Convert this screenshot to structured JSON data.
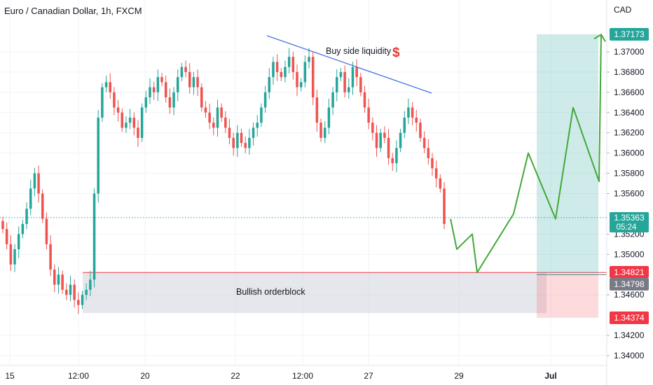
{
  "header": {
    "title": "Euro / Canadian Dollar, 1h, FXCM",
    "currency": "CAD"
  },
  "annotations": {
    "liquidity_label": "Buy side liquidity",
    "dollar_sign": "$",
    "orderblock_label": "Bullish orderblock"
  },
  "price_axis": {
    "ticks": [
      "1.37000",
      "1.36800",
      "1.36600",
      "1.36400",
      "1.36200",
      "1.36000",
      "1.35800",
      "1.35600",
      "1.35200",
      "1.35000",
      "1.34600",
      "1.34200",
      "1.34000"
    ],
    "tick_values": [
      1.37,
      1.368,
      1.366,
      1.364,
      1.362,
      1.36,
      1.358,
      1.356,
      1.352,
      1.35,
      1.346,
      1.342,
      1.34
    ]
  },
  "time_axis": {
    "labels": [
      "15",
      "12:00",
      "20",
      "22",
      "12:00",
      "27",
      "29",
      "Jul"
    ]
  },
  "price_tags": {
    "target": {
      "text": "1.37173",
      "color": "#26a69a"
    },
    "current": {
      "text": "1.35363",
      "countdown": "05:24",
      "color": "#26a69a"
    },
    "orderblock_top": {
      "text": "1.34821",
      "color": "#f23645"
    },
    "orderblock_mid": {
      "text": "1.34798",
      "color": "#787b86"
    },
    "stop": {
      "text": "1.34374",
      "color": "#f23645"
    }
  },
  "colors": {
    "up": "#26a69a",
    "down": "#ef5350",
    "projection": "#43a83a",
    "trendline": "#4169e1"
  },
  "chart_data": {
    "type": "candlestick",
    "series_close": [
      1.3525,
      1.351,
      1.349,
      1.3505,
      1.352,
      1.353,
      1.3545,
      1.3565,
      1.358,
      1.356,
      1.3535,
      1.351,
      1.3485,
      1.347,
      1.348,
      1.3465,
      1.346,
      1.347,
      1.3455,
      1.345,
      1.346,
      1.3465,
      1.3475,
      1.356,
      1.3635,
      1.3665,
      1.367,
      1.366,
      1.3645,
      1.364,
      1.3625,
      1.363,
      1.3635,
      1.3625,
      1.3615,
      1.3645,
      1.3655,
      1.3665,
      1.366,
      1.3675,
      1.367,
      1.3655,
      1.3645,
      1.366,
      1.3675,
      1.3685,
      1.368,
      1.3665,
      1.3675,
      1.3665,
      1.3645,
      1.364,
      1.363,
      1.3625,
      1.3645,
      1.3635,
      1.3625,
      1.3615,
      1.3605,
      1.362,
      1.361,
      1.3605,
      1.3615,
      1.3625,
      1.363,
      1.3645,
      1.366,
      1.3675,
      1.369,
      1.368,
      1.3675,
      1.3685,
      1.3695,
      1.368,
      1.3665,
      1.367,
      1.369,
      1.3695,
      1.3655,
      1.363,
      1.3615,
      1.3625,
      1.3645,
      1.366,
      1.3675,
      1.368,
      1.366,
      1.3665,
      1.3685,
      1.3675,
      1.366,
      1.3645,
      1.363,
      1.362,
      1.3605,
      1.362,
      1.3615,
      1.3595,
      1.359,
      1.3605,
      1.362,
      1.3635,
      1.3645,
      1.3635,
      1.363,
      1.3615,
      1.3605,
      1.3595,
      1.3585,
      1.3575,
      1.3565,
      1.353
    ],
    "projection_path": [
      1.3535,
      1.3505,
      1.352,
      1.3482,
      1.354,
      1.36,
      1.3535,
      1.3645,
      1.3572,
      1.3717
    ],
    "levels": {
      "target": 1.37173,
      "current": 1.35363,
      "orderblock_top": 1.34821,
      "orderblock_mid": 1.34798,
      "stop": 1.34374,
      "orderblock_bottom": 1.3442
    },
    "ylim": [
      1.3385,
      1.3745
    ],
    "title": "Euro / Canadian Dollar, 1h, FXCM",
    "xlabel": "",
    "ylabel": "CAD"
  }
}
